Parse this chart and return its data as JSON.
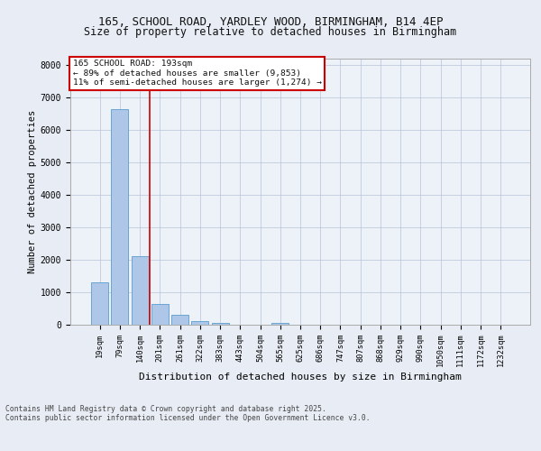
{
  "title_line1": "165, SCHOOL ROAD, YARDLEY WOOD, BIRMINGHAM, B14 4EP",
  "title_line2": "Size of property relative to detached houses in Birmingham",
  "xlabel": "Distribution of detached houses by size in Birmingham",
  "ylabel": "Number of detached properties",
  "categories": [
    "19sqm",
    "79sqm",
    "140sqm",
    "201sqm",
    "261sqm",
    "322sqm",
    "383sqm",
    "443sqm",
    "504sqm",
    "565sqm",
    "625sqm",
    "686sqm",
    "747sqm",
    "807sqm",
    "868sqm",
    "929sqm",
    "990sqm",
    "1050sqm",
    "1111sqm",
    "1172sqm",
    "1232sqm"
  ],
  "values": [
    1300,
    6650,
    2100,
    650,
    300,
    110,
    65,
    0,
    0,
    60,
    0,
    0,
    0,
    0,
    0,
    0,
    0,
    0,
    0,
    0,
    0
  ],
  "bar_color": "#aec6e8",
  "bar_edge_color": "#5a9ecf",
  "vline_x": 2.5,
  "vline_color": "#cc0000",
  "annotation_title": "165 SCHOOL ROAD: 193sqm",
  "annotation_line2": "← 89% of detached houses are smaller (9,853)",
  "annotation_line3": "11% of semi-detached houses are larger (1,274) →",
  "annotation_box_color": "#cc0000",
  "ylim": [
    0,
    8200
  ],
  "yticks": [
    0,
    1000,
    2000,
    3000,
    4000,
    5000,
    6000,
    7000,
    8000
  ],
  "footer_line1": "Contains HM Land Registry data © Crown copyright and database right 2025.",
  "footer_line2": "Contains public sector information licensed under the Open Government Licence v3.0.",
  "bg_color": "#e8edf5",
  "plot_bg_color": "#edf1f8"
}
